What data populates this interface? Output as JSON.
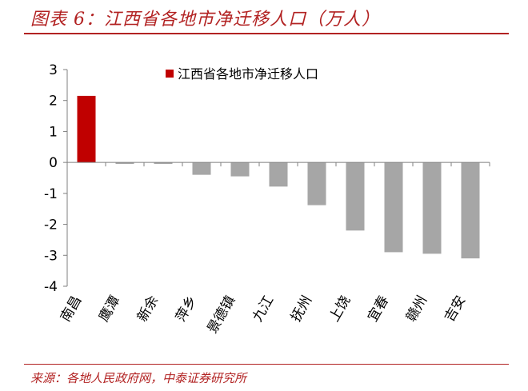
{
  "figure": {
    "title": "图表 6：江西省各地市净迁移人口（万人）",
    "source": "来源：各地人民政府网，中泰证券研究所"
  },
  "colors": {
    "accent": "#b22222",
    "highlight_bar": "#c00000",
    "normal_bar": "#a6a6a6"
  },
  "chart_data": {
    "type": "bar",
    "title": "图表 6：江西省各地市净迁移人口（万人）",
    "xlabel": "",
    "ylabel": "",
    "categories": [
      "南昌",
      "鹰潭",
      "新余",
      "萍乡",
      "景德镇",
      "九江",
      "抚州",
      "上饶",
      "宜春",
      "赣州",
      "吉安"
    ],
    "series": [
      {
        "name": "江西省各地市净迁移人口",
        "values": [
          2.15,
          -0.05,
          -0.05,
          -0.4,
          -0.45,
          -0.78,
          -1.38,
          -2.2,
          -2.9,
          -2.95,
          -3.1
        ]
      }
    ],
    "ylim": [
      -4,
      3
    ],
    "yticks": [
      "3",
      "2",
      "1",
      "0",
      "-1",
      "-2",
      "-3",
      "-4"
    ],
    "grid": false,
    "legend": "top-center"
  }
}
